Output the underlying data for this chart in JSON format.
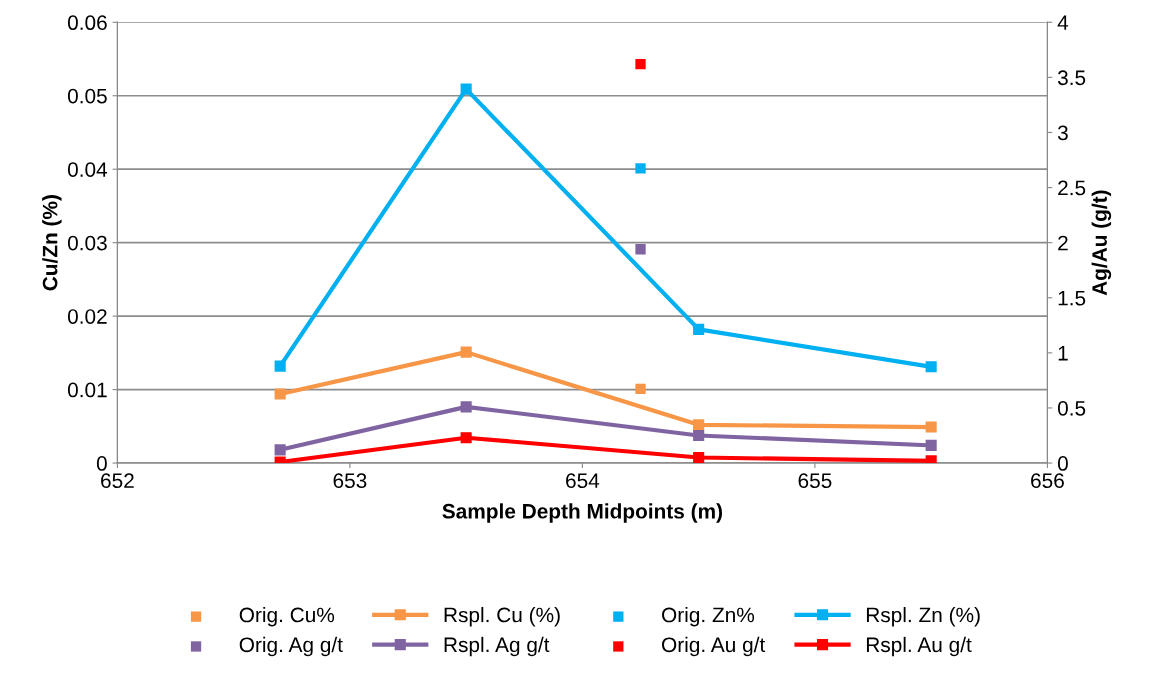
{
  "chart_data": {
    "type": "line",
    "xlabel": "Sample Depth Midpoints (m)",
    "ylabel": "Cu/Zn (%)",
    "y2label": "Ag/Au (g/t)",
    "xlim": [
      652,
      656
    ],
    "xticks": [
      652,
      653,
      654,
      655,
      656
    ],
    "ylim": [
      0,
      0.06
    ],
    "yticks": [
      0,
      0.01,
      0.02,
      0.03,
      0.04,
      0.05,
      0.06
    ],
    "y2lim": [
      0,
      4
    ],
    "y2ticks": [
      0,
      0.5,
      1,
      1.5,
      2,
      2.5,
      3,
      3.5,
      4
    ],
    "grid": "y",
    "legend": "bottom",
    "marker": "square",
    "series": [
      {
        "name": "Orig. Cu%",
        "type": "scatter",
        "color": "#f79646",
        "x": [
          654.25
        ],
        "values": [
          0.0101
        ]
      },
      {
        "name": "Rspl. Cu (%)",
        "type": "line",
        "color": "#f79646",
        "x": [
          652.7,
          653.5,
          654.5,
          655.5
        ],
        "values": [
          0.0094,
          0.0151,
          0.0052,
          0.0049
        ]
      },
      {
        "name": "Orig. Zn%",
        "type": "scatter",
        "color": "#00b0f0",
        "x": [
          654.25
        ],
        "values": [
          0.0401
        ]
      },
      {
        "name": "Rspl. Zn (%)",
        "type": "line",
        "color": "#00b0f0",
        "x": [
          652.7,
          653.5,
          654.5,
          655.5
        ],
        "values": [
          0.0132,
          0.0509,
          0.0182,
          0.0131
        ]
      },
      {
        "name": "Orig. Ag g/t",
        "type": "scatter",
        "color": "#8064a2",
        "axis": "y2",
        "x": [
          654.25
        ],
        "values": [
          1.94
        ]
      },
      {
        "name": "Rspl. Ag g/t",
        "type": "line",
        "color": "#8064a2",
        "axis": "y2",
        "x": [
          652.7,
          653.5,
          654.5,
          655.5
        ],
        "values": [
          0.12,
          0.51,
          0.25,
          0.16
        ]
      },
      {
        "name": "Orig. Au g/t",
        "type": "scatter",
        "color": "#ff0000",
        "axis": "y2",
        "x": [
          654.25
        ],
        "values": [
          3.62
        ]
      },
      {
        "name": "Rspl. Au g/t",
        "type": "line",
        "color": "#ff0000",
        "axis": "y2",
        "x": [
          652.7,
          653.5,
          654.5,
          655.5
        ],
        "values": [
          0.01,
          0.23,
          0.05,
          0.02
        ]
      }
    ]
  }
}
